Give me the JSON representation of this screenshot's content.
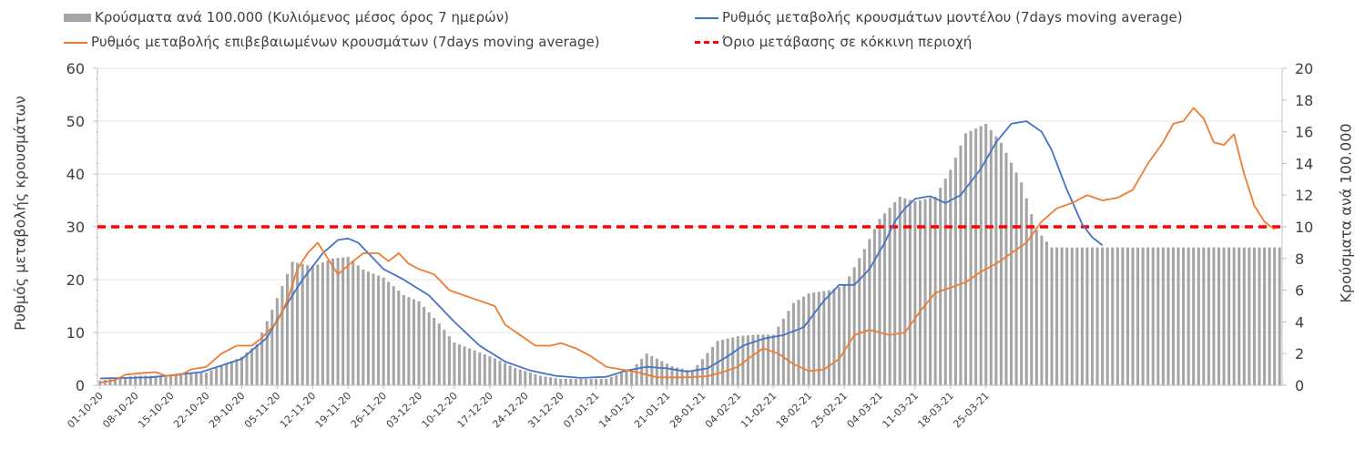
{
  "chart_data": {
    "type": "bar+line",
    "title": "",
    "ylabel_left": "Ρυθμός μεταβολής κρουσμάτων",
    "ylabel_right": "Κρούσματα ανά 100.000",
    "ylim_left": [
      0,
      60
    ],
    "ylim_right": [
      0,
      20
    ],
    "yticks_left": [
      "0",
      "10",
      "20",
      "30",
      "40",
      "50",
      "60"
    ],
    "yticks_right": [
      "0",
      "2",
      "4",
      "6",
      "8",
      "10",
      "12",
      "14",
      "16",
      "18",
      "20"
    ],
    "xtick_labels": [
      "01-10-20",
      "08-10-20",
      "15-10-20",
      "22-10-20",
      "29-10-20",
      "05-11-20",
      "12-11-20",
      "19-11-20",
      "26-11-20",
      "03-12-20",
      "10-12-20",
      "17-12-20",
      "24-12-20",
      "31-12-20",
      "07-01-21",
      "14-01-21",
      "21-01-21",
      "28-01-21",
      "04-02-21",
      "11-02-21",
      "18-02-21",
      "25-02-21",
      "04-03-21",
      "11-03-21",
      "18-03-21",
      "25-03-21"
    ],
    "legend": {
      "bars": "Κρούσματα ανά 100.000 (Κυλιόμενος μέσος όρος 7 ημερών)",
      "model": "Ρυθμός μεταβολής κρουσμάτων μοντέλου (7days moving average)",
      "confirmed": "Ρυθμός μεταβολής επιβεβαιωμένων κρουσμάτων (7days moving average)",
      "threshold": "Όριο μετάβασης σε κόκκινη περιοχή"
    },
    "threshold_value": 30,
    "colors": {
      "bars": "#a5a5a5",
      "model": "#4472c4",
      "confirmed": "#ed7d31",
      "threshold": "#ff0000"
    },
    "series": [
      {
        "name": "Κρούσματα ανά 100.000 (Κυλιόμενος μέσος όρος 7 ημερών)",
        "axis": "right",
        "kind": "bar",
        "anchors": [
          [
            0,
            0.3
          ],
          [
            7,
            0.6
          ],
          [
            14,
            0.6
          ],
          [
            21,
            0.8
          ],
          [
            28,
            1.8
          ],
          [
            31,
            2.6
          ],
          [
            35,
            5.5
          ],
          [
            38,
            7.8
          ],
          [
            42,
            7.5
          ],
          [
            46,
            8.0
          ],
          [
            49,
            8.1
          ],
          [
            52,
            7.3
          ],
          [
            56,
            6.8
          ],
          [
            60,
            5.7
          ],
          [
            63,
            5.3
          ],
          [
            67,
            3.9
          ],
          [
            70,
            2.7
          ],
          [
            74,
            2.2
          ],
          [
            78,
            1.7
          ],
          [
            82,
            1.1
          ],
          [
            87,
            0.6
          ],
          [
            91,
            0.4
          ],
          [
            95,
            0.4
          ],
          [
            100,
            0.4
          ],
          [
            105,
            1.0
          ],
          [
            108,
            2.0
          ],
          [
            113,
            1.2
          ],
          [
            117,
            0.9
          ],
          [
            122,
            2.8
          ],
          [
            126,
            3.1
          ],
          [
            130,
            3.2
          ],
          [
            133,
            3.2
          ],
          [
            137,
            5.2
          ],
          [
            140,
            5.8
          ],
          [
            144,
            6.0
          ],
          [
            147,
            6.3
          ],
          [
            151,
            8.6
          ],
          [
            154,
            10.5
          ],
          [
            158,
            11.9
          ],
          [
            161,
            11.6
          ],
          [
            165,
            11.9
          ],
          [
            168,
            13.6
          ],
          [
            171,
            15.9
          ],
          [
            175,
            16.5
          ],
          [
            178,
            15.3
          ],
          [
            182,
            12.8
          ],
          [
            185,
            9.8
          ],
          [
            188,
            8.7
          ]
        ]
      },
      {
        "name": "Ρυθμός μεταβολής κρουσμάτων μοντέλου (7days moving average)",
        "axis": "left",
        "kind": "line",
        "anchors": [
          [
            0,
            1.3
          ],
          [
            10,
            1.5
          ],
          [
            20,
            2.5
          ],
          [
            28,
            5
          ],
          [
            33,
            9
          ],
          [
            36,
            14
          ],
          [
            40,
            20
          ],
          [
            44,
            25
          ],
          [
            47,
            27.5
          ],
          [
            49,
            27.8
          ],
          [
            51,
            27
          ],
          [
            53,
            25
          ],
          [
            56,
            22
          ],
          [
            60,
            20
          ],
          [
            65,
            17
          ],
          [
            70,
            12
          ],
          [
            75,
            7.5
          ],
          [
            80,
            4.5
          ],
          [
            85,
            2.8
          ],
          [
            90,
            1.8
          ],
          [
            95,
            1.4
          ],
          [
            100,
            1.6
          ],
          [
            104,
            2.8
          ],
          [
            108,
            3.5
          ],
          [
            112,
            3.2
          ],
          [
            116,
            2.6
          ],
          [
            120,
            3.2
          ],
          [
            124,
            5.5
          ],
          [
            127,
            7.5
          ],
          [
            131,
            8.8
          ],
          [
            135,
            9.5
          ],
          [
            139,
            11
          ],
          [
            143,
            16
          ],
          [
            146,
            19
          ],
          [
            149,
            19
          ],
          [
            152,
            22
          ],
          [
            155,
            27
          ],
          [
            157,
            31
          ],
          [
            159,
            33.5
          ],
          [
            161,
            35.3
          ],
          [
            164,
            35.8
          ],
          [
            167,
            34.5
          ],
          [
            170,
            36
          ],
          [
            174,
            41
          ],
          [
            177,
            46
          ],
          [
            180,
            49.5
          ],
          [
            183,
            50
          ],
          [
            186,
            48
          ],
          [
            188,
            44.5
          ],
          [
            191,
            37
          ],
          [
            194,
            30.5
          ],
          [
            196,
            28
          ],
          [
            198,
            26.5
          ]
        ]
      },
      {
        "name": "Ρυθμός μεταβολής επιβεβαιωμένων κρουσμάτων (7days moving average)",
        "axis": "left",
        "kind": "line",
        "anchors": [
          [
            0,
            0.5
          ],
          [
            3,
            1
          ],
          [
            5,
            2
          ],
          [
            8,
            2.3
          ],
          [
            11,
            2.5
          ],
          [
            13,
            1.8
          ],
          [
            16,
            2
          ],
          [
            18,
            3
          ],
          [
            21,
            3.5
          ],
          [
            24,
            6
          ],
          [
            27,
            7.5
          ],
          [
            30,
            7.5
          ],
          [
            32,
            9
          ],
          [
            35,
            12
          ],
          [
            37,
            16
          ],
          [
            39,
            22
          ],
          [
            41,
            25
          ],
          [
            43,
            27
          ],
          [
            45,
            24
          ],
          [
            47,
            21
          ],
          [
            50,
            23.5
          ],
          [
            52,
            25
          ],
          [
            55,
            25
          ],
          [
            57,
            23.5
          ],
          [
            59,
            25
          ],
          [
            61,
            23
          ],
          [
            63,
            22
          ],
          [
            66,
            21
          ],
          [
            69,
            18
          ],
          [
            72,
            17
          ],
          [
            75,
            16
          ],
          [
            78,
            15
          ],
          [
            80,
            11.5
          ],
          [
            83,
            9.5
          ],
          [
            86,
            7.5
          ],
          [
            89,
            7.5
          ],
          [
            91,
            8
          ],
          [
            94,
            7
          ],
          [
            97,
            5.5
          ],
          [
            100,
            3.5
          ],
          [
            103,
            3
          ],
          [
            106,
            2.5
          ],
          [
            110,
            1.5
          ],
          [
            115,
            1.5
          ],
          [
            120,
            1.7
          ],
          [
            123,
            2.5
          ],
          [
            126,
            3.5
          ],
          [
            128,
            5
          ],
          [
            131,
            7
          ],
          [
            134,
            6
          ],
          [
            137,
            4
          ],
          [
            140,
            2.7
          ],
          [
            143,
            3
          ],
          [
            146,
            5
          ],
          [
            149,
            9.5
          ],
          [
            152,
            10.5
          ],
          [
            156,
            9.5
          ],
          [
            159,
            10
          ],
          [
            162,
            14
          ],
          [
            165,
            17.5
          ],
          [
            168,
            18.5
          ],
          [
            171,
            19.5
          ],
          [
            174,
            21.5
          ],
          [
            177,
            23
          ],
          [
            180,
            25
          ],
          [
            183,
            27
          ],
          [
            186,
            31
          ],
          [
            189,
            33.5
          ],
          [
            192,
            34.5
          ],
          [
            195,
            36
          ],
          [
            198,
            35
          ],
          [
            201,
            35.5
          ],
          [
            204,
            37
          ],
          [
            207,
            42
          ],
          [
            210,
            46
          ],
          [
            212,
            49.5
          ],
          [
            214,
            50
          ],
          [
            216,
            52.5
          ],
          [
            218,
            50.5
          ],
          [
            220,
            46
          ],
          [
            222,
            45.5
          ],
          [
            224,
            47.5
          ],
          [
            226,
            40
          ],
          [
            228,
            34
          ],
          [
            230,
            31
          ],
          [
            232,
            29.5
          ]
        ]
      }
    ]
  }
}
